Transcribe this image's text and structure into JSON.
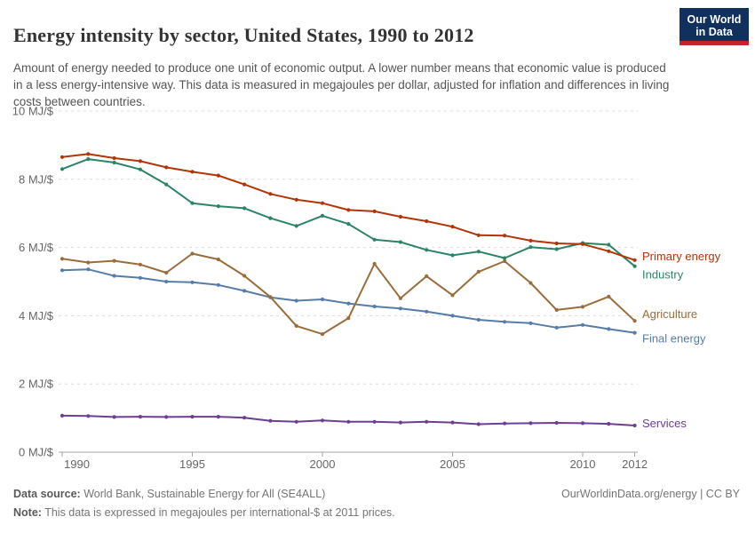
{
  "header": {
    "title": "Energy intensity by sector, United States, 1990 to 2012",
    "subtitle": "Amount of energy needed to produce one unit of economic output. A lower number means that economic value is produced in a less energy-intensive way. This data is measured in megajoules per dollar, adjusted for inflation and differences in living costs between countries.",
    "logo": {
      "line1": "Our World",
      "line2": "in Data",
      "background_color": "#12305e",
      "stripe_color": "#c5232b"
    }
  },
  "chart_data": {
    "type": "line",
    "title": "Energy intensity by sector, United States, 1990 to 2012",
    "xlabel": "",
    "ylabel": "MJ/$",
    "ylim": [
      0,
      10
    ],
    "yticks": [
      0,
      2,
      4,
      6,
      8,
      10
    ],
    "ytick_suffix": " MJ/$",
    "xticks": [
      1990,
      1995,
      2000,
      2005,
      2010,
      2012
    ],
    "grid": "horizontal-dashed",
    "legend_position": "line-end-labels-right",
    "x": [
      1990,
      1991,
      1992,
      1993,
      1994,
      1995,
      1996,
      1997,
      1998,
      1999,
      2000,
      2001,
      2002,
      2003,
      2004,
      2005,
      2006,
      2007,
      2008,
      2009,
      2010,
      2011,
      2012
    ],
    "series": [
      {
        "name": "Services",
        "color": "#6d3e91",
        "values": [
          1.07,
          1.06,
          1.03,
          1.04,
          1.03,
          1.04,
          1.04,
          1.01,
          0.92,
          0.89,
          0.93,
          0.89,
          0.89,
          0.87,
          0.89,
          0.87,
          0.82,
          0.84,
          0.85,
          0.86,
          0.85,
          0.83,
          0.78
        ]
      },
      {
        "name": "Final energy",
        "color": "#577ca9",
        "values": [
          5.33,
          5.36,
          5.17,
          5.11,
          5.0,
          4.98,
          4.9,
          4.73,
          4.54,
          4.44,
          4.48,
          4.36,
          4.27,
          4.21,
          4.12,
          4.0,
          3.88,
          3.82,
          3.78,
          3.65,
          3.73,
          3.61,
          3.5
        ]
      },
      {
        "name": "Agriculture",
        "color": "#996d39",
        "values": [
          5.67,
          5.56,
          5.61,
          5.5,
          5.26,
          5.82,
          5.65,
          5.17,
          4.55,
          3.7,
          3.46,
          3.93,
          5.52,
          4.51,
          5.16,
          4.6,
          5.29,
          5.6,
          4.96,
          4.17,
          4.26,
          4.56,
          3.85
        ]
      },
      {
        "name": "Industry",
        "color": "#2c8465",
        "values": [
          8.3,
          8.59,
          8.49,
          8.29,
          7.85,
          7.3,
          7.21,
          7.15,
          6.86,
          6.63,
          6.93,
          6.69,
          6.23,
          6.16,
          5.93,
          5.77,
          5.88,
          5.69,
          6.01,
          5.95,
          6.13,
          6.08,
          5.45
        ]
      },
      {
        "name": "Primary energy",
        "color": "#b13507",
        "values": [
          8.65,
          8.74,
          8.62,
          8.53,
          8.35,
          8.22,
          8.11,
          7.85,
          7.57,
          7.4,
          7.3,
          7.1,
          7.06,
          6.9,
          6.77,
          6.61,
          6.36,
          6.35,
          6.2,
          6.12,
          6.1,
          5.89,
          5.63
        ]
      }
    ]
  },
  "footer": {
    "datasource_label": "Data source:",
    "datasource_text": " World Bank, Sustainable Energy for All (SE4ALL)",
    "note_label": "Note:",
    "note_text": " This data is expressed in megajoules per international-$ at 2011 prices.",
    "right_text": "OurWorldinData.org/energy | CC BY"
  },
  "colors": {
    "gridline": "#dcdcdc",
    "axis": "#a3a3a3",
    "tick_label": "#666666"
  }
}
